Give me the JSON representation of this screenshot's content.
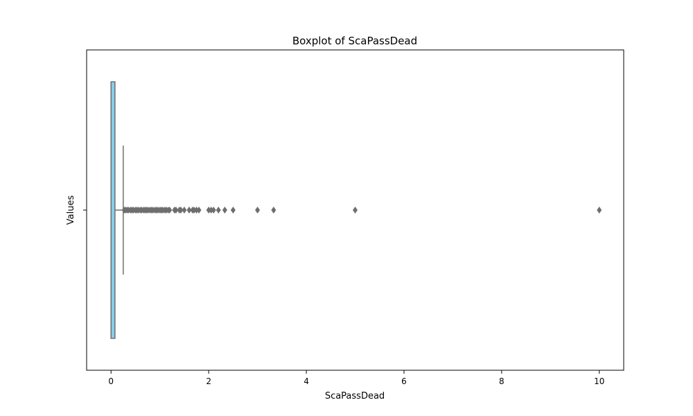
{
  "chart_data": {
    "type": "box",
    "title": "Boxplot of ScaPassDead",
    "xlabel": "ScaPassDead",
    "ylabel": "Values",
    "xlim": [
      -0.5,
      10.5
    ],
    "x_ticks": [
      0,
      2,
      4,
      6,
      8,
      10
    ],
    "grid": false,
    "box": {
      "min": 0,
      "q1": 0,
      "median": 0,
      "q3": 0.08,
      "whisker_high": 0.25,
      "fill_color": "#87CEEB",
      "line_color": "#6e6e6e"
    },
    "outliers": [
      0.27,
      0.3,
      0.33,
      0.36,
      0.4,
      0.43,
      0.46,
      0.5,
      0.53,
      0.56,
      0.6,
      0.63,
      0.67,
      0.7,
      0.73,
      0.76,
      0.8,
      0.83,
      0.86,
      0.9,
      0.93,
      0.96,
      1.0,
      1.03,
      1.06,
      1.1,
      1.13,
      1.17,
      1.2,
      1.3,
      1.33,
      1.4,
      1.43,
      1.5,
      1.6,
      1.67,
      1.7,
      1.75,
      1.8,
      2.0,
      2.05,
      2.1,
      2.2,
      2.33,
      2.5,
      3.0,
      3.33,
      5.0,
      10.0
    ],
    "outlier_color": "#6e6e6e"
  }
}
